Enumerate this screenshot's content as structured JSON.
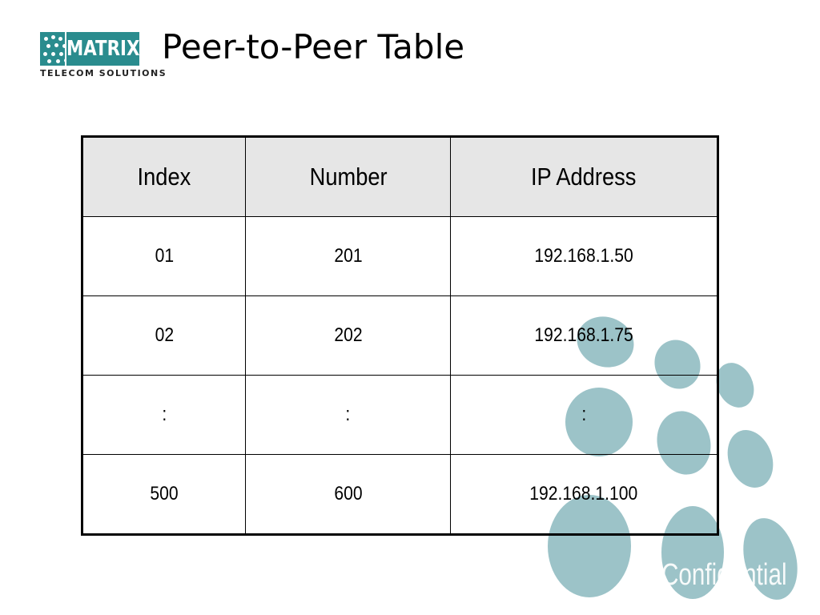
{
  "logo": {
    "wordmark": "MATRIX",
    "tagline": "TELECOM SOLUTIONS"
  },
  "slide": {
    "title": "Peer-to-Peer Table"
  },
  "table": {
    "headers": [
      "Index",
      "Number",
      "IP Address"
    ],
    "rows": [
      [
        "01",
        "201",
        "192.168.1.50"
      ],
      [
        "02",
        "202",
        "192.168.1.75"
      ],
      [
        ":",
        ":",
        ":"
      ],
      [
        "500",
        "600",
        "192.168.1.100"
      ]
    ]
  },
  "watermark": {
    "text": "Confidential"
  },
  "colors": {
    "brand_teal": "#2a8c8e",
    "dot_color": "#9cc3c8",
    "header_fill": "#e6e6e6"
  }
}
